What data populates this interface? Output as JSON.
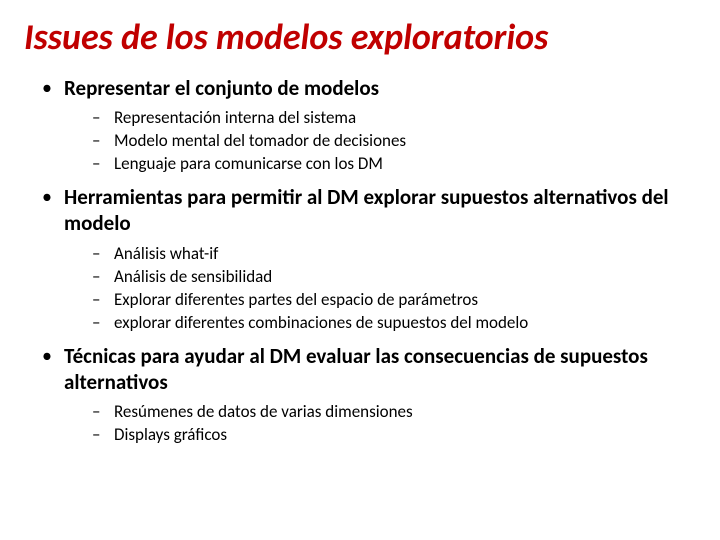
{
  "title": "Issues de los modelos exploratorios",
  "bullets": [
    {
      "text": "Representar el conjunto de modelos",
      "sub": [
        "Representación interna del sistema",
        "Modelo mental del tomador de decisiones",
        "Lenguaje para comunicarse con los DM"
      ]
    },
    {
      "text": "Herramientas para permitir al DM explorar supuestos alternativos del modelo",
      "sub": [
        "Análisis what-if",
        "Análisis de sensibilidad",
        "Explorar diferentes partes del espacio de parámetros",
        "explorar diferentes combinaciones de supuestos del modelo"
      ]
    },
    {
      "text": "Técnicas para ayudar al DM evaluar las consecuencias de supuestos alternativos",
      "sub": [
        "Resúmenes de datos de varias dimensiones",
        "Displays gráficos"
      ]
    }
  ],
  "colors": {
    "title": "#c00000",
    "text": "#000000",
    "background": "#ffffff"
  },
  "fonts": {
    "title_size_pt": 36,
    "title_style": "italic",
    "title_weight": 700,
    "level1_size_pt": 21,
    "level1_weight": 700,
    "level2_size_pt": 17,
    "level2_weight": 400,
    "family": "Calibri"
  }
}
